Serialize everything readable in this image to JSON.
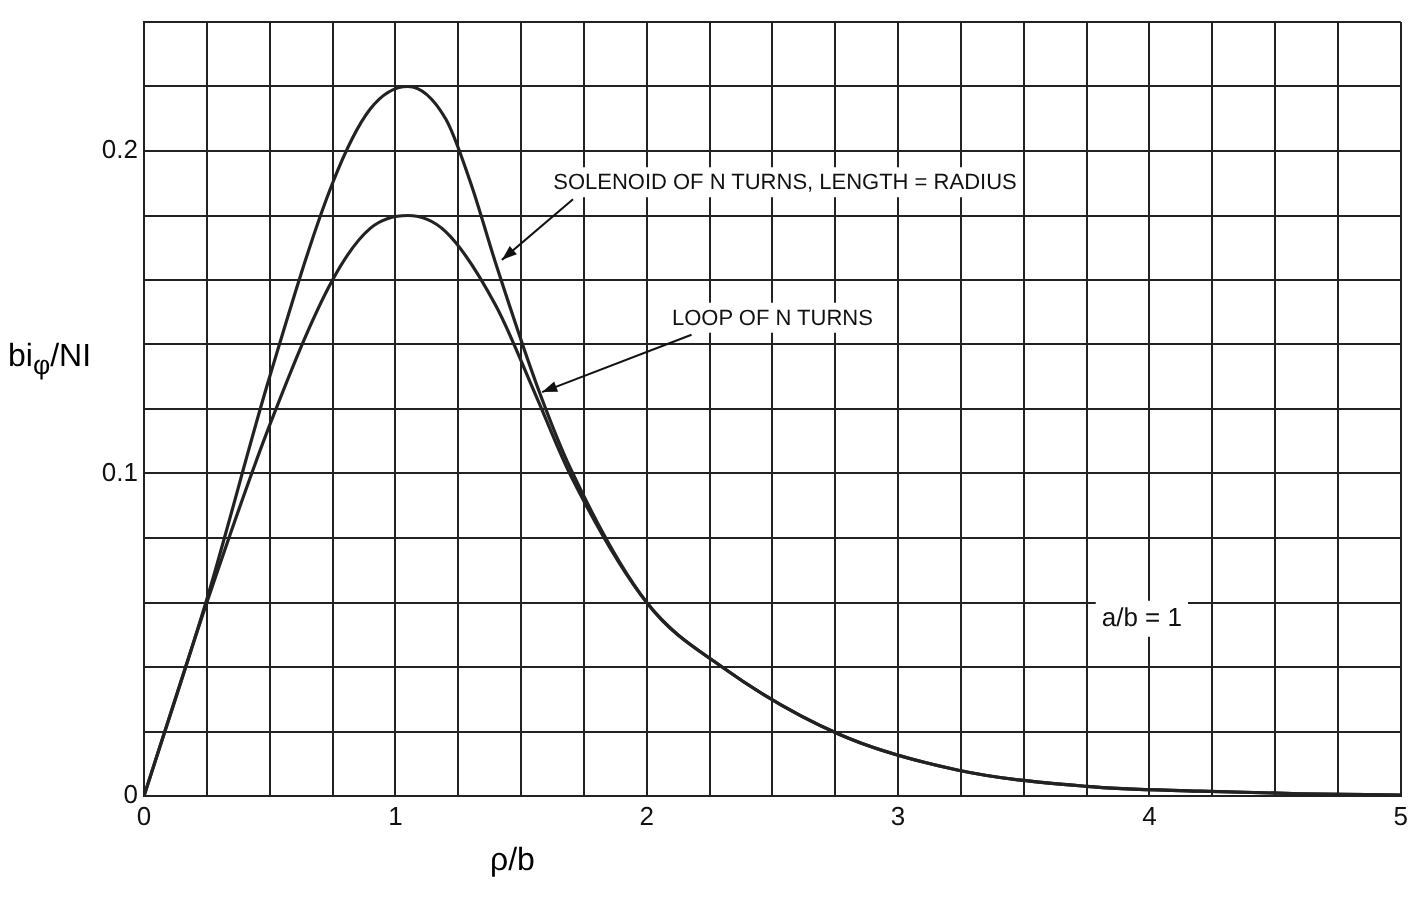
{
  "chart_data": {
    "type": "line",
    "xlabel": "ρ/b",
    "ylabel": "bi$_{φ}$/NI",
    "xlim": [
      0,
      5
    ],
    "ylim": [
      0,
      0.24
    ],
    "xticks": [
      0,
      {
        "value": 0.25,
        "label": null
      },
      {
        "value": 0.5,
        "label": null
      },
      {
        "value": 0.75,
        "label": null
      },
      1,
      {
        "value": 1.25,
        "label": null
      },
      {
        "value": 1.5,
        "label": null
      },
      {
        "value": 1.75,
        "label": null
      },
      2,
      {
        "value": 2.25,
        "label": null
      },
      {
        "value": 2.5,
        "label": null
      },
      {
        "value": 2.75,
        "label": null
      },
      3,
      {
        "value": 3.25,
        "label": null
      },
      {
        "value": 3.5,
        "label": null
      },
      {
        "value": 3.75,
        "label": null
      },
      4,
      {
        "value": 4.25,
        "label": null
      },
      {
        "value": 4.5,
        "label": null
      },
      {
        "value": 4.75,
        "label": null
      },
      5
    ],
    "yticks": [
      0,
      {
        "value": 0.02,
        "label": null
      },
      {
        "value": 0.04,
        "label": null
      },
      {
        "value": 0.06,
        "label": null
      },
      {
        "value": 0.08,
        "label": null
      },
      0.1,
      {
        "value": 0.12,
        "label": null
      },
      {
        "value": 0.14,
        "label": null
      },
      {
        "value": 0.16,
        "label": null
      },
      {
        "value": 0.18,
        "label": null
      },
      0.2,
      {
        "value": 0.22,
        "label": null
      },
      {
        "value": 0.24,
        "label": null
      }
    ],
    "grid": true,
    "legend": false,
    "marker": "none",
    "line_style": "solid",
    "series": [
      {
        "color": "#222222",
        "x": [
          0,
          0.25,
          0.5,
          0.75,
          0.9,
          1.05,
          1.2,
          1.3,
          1.4,
          1.56,
          1.7,
          2.0,
          2.3,
          2.77,
          3.24,
          3.75,
          4.2,
          4.6,
          5
        ],
        "values": [
          0,
          0.061,
          0.13,
          0.19,
          0.213,
          0.22,
          0.21,
          0.19,
          0.165,
          0.128,
          0.101,
          0.06,
          0.04,
          0.019,
          0.008,
          0.003,
          0.0015,
          0.0007,
          0.0003
        ]
      },
      {
        "color": "#222222",
        "x": [
          0,
          0.25,
          0.5,
          0.75,
          0.9,
          1.05,
          1.2,
          1.4,
          1.56,
          1.7,
          2.0,
          2.3,
          2.77,
          3.24,
          3.75,
          4.2,
          4.6,
          5
        ],
        "values": [
          0,
          0.06,
          0.115,
          0.16,
          0.176,
          0.18,
          0.175,
          0.152,
          0.124,
          0.099,
          0.06,
          0.04,
          0.019,
          0.008,
          0.003,
          0.0015,
          0.0007,
          0.0003
        ]
      }
    ],
    "annotations": [
      {
        "text": "SOLENOID OF N TURNS, LENGTH = RADIUS",
        "x": 1.4,
        "y": 0.165
      },
      {
        "text": "LOOP OF N TURNS",
        "x": 1.56,
        "y": 0.124
      },
      "a/b = 1"
    ]
  }
}
